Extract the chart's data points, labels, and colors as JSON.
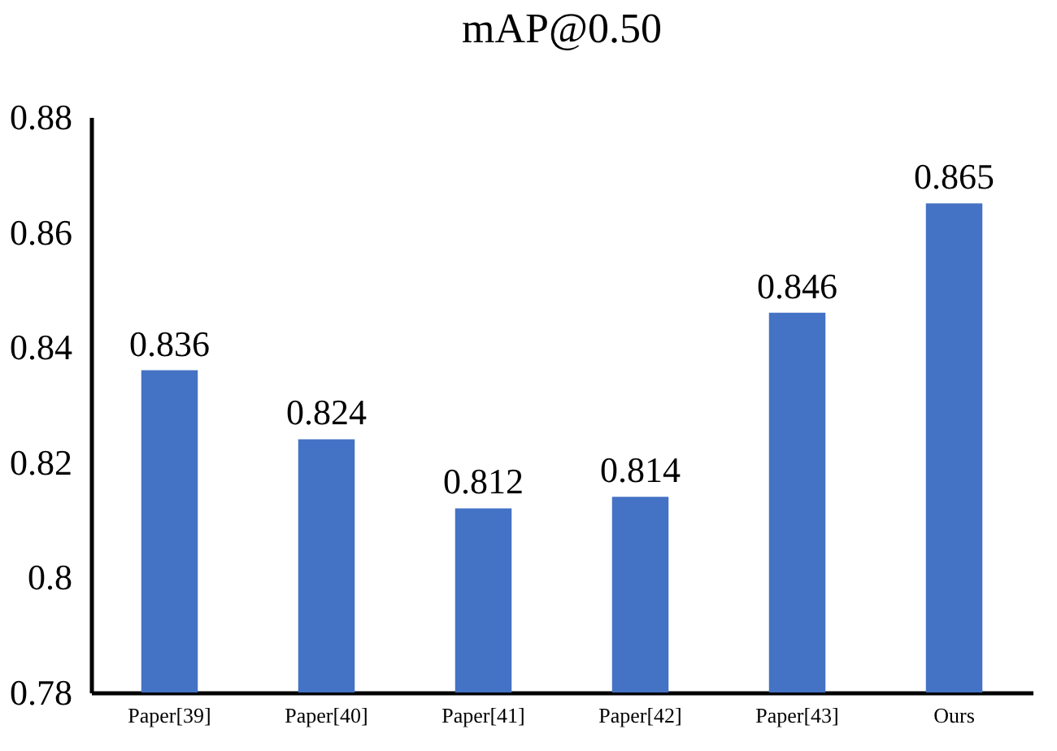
{
  "chart_data": {
    "type": "bar",
    "title": "mAP@0.50",
    "categories": [
      "Paper[39]",
      "Paper[40]",
      "Paper[41]",
      "Paper[42]",
      "Paper[43]",
      "Ours"
    ],
    "values": [
      0.836,
      0.824,
      0.812,
      0.814,
      0.846,
      0.865
    ],
    "color": "#4472c4",
    "data_labels": true,
    "grid": false,
    "ylim": [
      0.78,
      0.88
    ],
    "yticks": [
      0.78,
      0.8,
      0.82,
      0.84,
      0.86,
      0.88
    ]
  }
}
